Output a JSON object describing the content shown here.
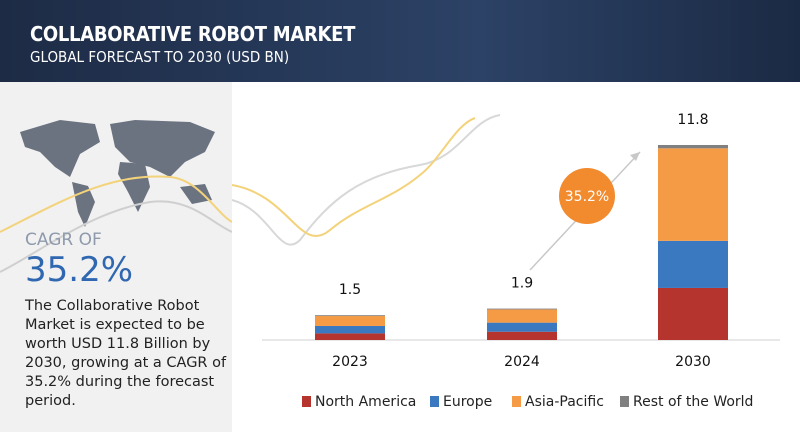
{
  "header": {
    "title": "COLLABORATIVE ROBOT MARKET",
    "subtitle": "GLOBAL FORECAST TO 2030 (USD BN)"
  },
  "summary": {
    "cagr_label": "CAGR OF",
    "cagr_value": "35.2%",
    "description": "The Collaborative Robot Market is expected to be worth USD  11.8 Billion by 2030, growing at a CAGR of 35.2% during the forecast period."
  },
  "chart_data": {
    "type": "stacked-bar",
    "categories": [
      "2023",
      "2024",
      "2030"
    ],
    "totals": [
      1.5,
      1.9,
      11.8
    ],
    "annotation": "35.2%",
    "series": [
      {
        "name": "North America",
        "color": "#b5352e",
        "values": [
          0.4,
          0.5,
          3.15
        ]
      },
      {
        "name": "Europe",
        "color": "#3a78bf",
        "values": [
          0.45,
          0.55,
          2.85
        ]
      },
      {
        "name": "Asia-Pacific",
        "color": "#f59a45",
        "values": [
          0.6,
          0.8,
          5.6
        ]
      },
      {
        "name": "Rest of the World",
        "color": "#808080",
        "values": [
          0.05,
          0.05,
          0.2
        ]
      }
    ]
  }
}
